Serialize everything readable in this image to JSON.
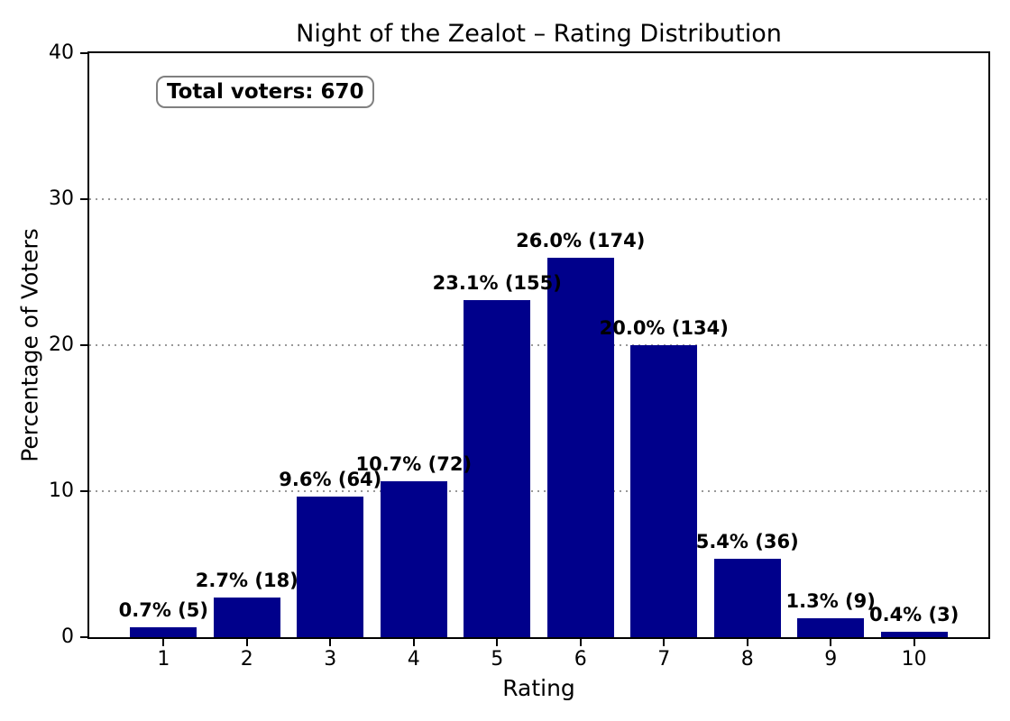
{
  "chart_data": {
    "type": "bar",
    "title": "Night of the Zealot – Rating Distribution",
    "xlabel": "Rating",
    "ylabel": "Percentage of Voters",
    "annotation": "Total voters: 670",
    "categories": [
      "1",
      "2",
      "3",
      "4",
      "5",
      "6",
      "7",
      "8",
      "9",
      "10"
    ],
    "values": [
      0.7,
      2.7,
      9.6,
      10.7,
      23.1,
      26.0,
      20.0,
      5.4,
      1.3,
      0.4
    ],
    "counts": [
      5,
      18,
      64,
      72,
      155,
      174,
      134,
      36,
      9,
      3
    ],
    "bar_labels": [
      "0.7% (5)",
      "2.7% (18)",
      "9.6% (64)",
      "10.7% (72)",
      "23.1% (155)",
      "26.0% (174)",
      "20.0% (134)",
      "5.4% (36)",
      "1.3% (9)",
      "0.4% (3)"
    ],
    "ylim": [
      0,
      40
    ],
    "yticks": [
      0,
      10,
      20,
      30,
      40
    ],
    "gridlines": [
      10,
      20,
      30
    ],
    "bar_color": "#00008B",
    "grid_color": "#999999",
    "axis_color": "#000000",
    "annotation_border_color": "#808080",
    "legend_position": "none",
    "grid": "horizontal-dotted"
  }
}
